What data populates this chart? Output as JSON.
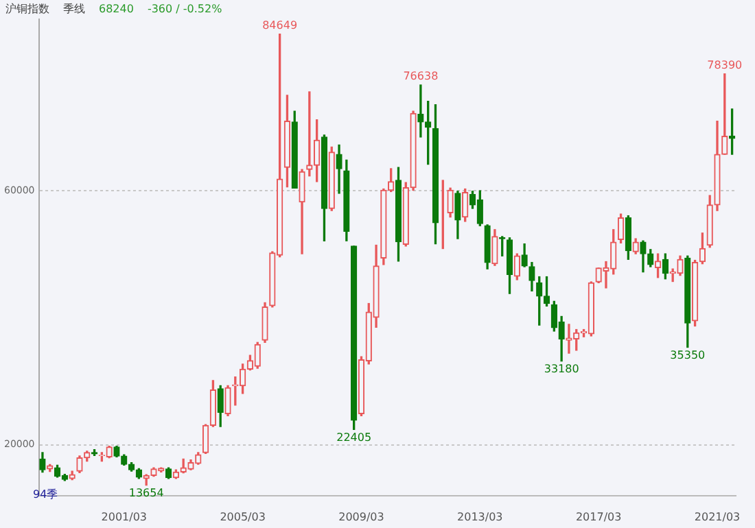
{
  "chart_data": {
    "type": "candlestick",
    "title": "沪铜指数",
    "subtitle": "季线",
    "annotations": [
      "68240",
      "-360 / -0.52%",
      "94季",
      {
        "text": "84649",
        "y": 84649
      },
      {
        "text": "13654",
        "y": 13654
      },
      {
        "text": "22405",
        "y": 22405
      },
      {
        "text": "76638",
        "y": 76638
      },
      {
        "text": "33180",
        "y": 33180
      },
      {
        "text": "35350",
        "y": 35350
      },
      {
        "text": "78390",
        "y": 78390
      }
    ],
    "categories": [
      null,
      null,
      null,
      null,
      null,
      null,
      null,
      null,
      null,
      null,
      null,
      "2001/03",
      null,
      null,
      null,
      null,
      null,
      null,
      null,
      null,
      null,
      null,
      null,
      null,
      null,
      null,
      null,
      "2005/03",
      null,
      null,
      null,
      null,
      null,
      null,
      null,
      null,
      null,
      null,
      null,
      null,
      null,
      null,
      null,
      "2009/03",
      null,
      null,
      null,
      null,
      null,
      null,
      null,
      null,
      null,
      null,
      null,
      null,
      null,
      null,
      null,
      "2013/03",
      null,
      null,
      null,
      null,
      null,
      null,
      null,
      null,
      null,
      null,
      null,
      null,
      null,
      null,
      null,
      "2017/03",
      null,
      null,
      null,
      null,
      null,
      null,
      null,
      null,
      null,
      null,
      null,
      null,
      null,
      null,
      null,
      "2021/03",
      null,
      null
    ],
    "ohlc": [
      [
        17760,
        18780,
        15700,
        16060
      ],
      [
        16200,
        16900,
        15800,
        16700
      ],
      [
        16400,
        16800,
        14900,
        15040
      ],
      [
        15170,
        15370,
        14360,
        14560
      ],
      [
        14700,
        15850,
        14500,
        15300
      ],
      [
        15850,
        18240,
        15600,
        17960
      ],
      [
        17960,
        19000,
        17420,
        18780
      ],
      [
        18780,
        19250,
        18300,
        18570
      ],
      [
        18300,
        18780,
        17420,
        18370
      ],
      [
        18100,
        19800,
        17960,
        19660
      ],
      [
        19660,
        19800,
        18100,
        18230
      ],
      [
        18230,
        18440,
        16800,
        16940
      ],
      [
        16940,
        17210,
        15850,
        16060
      ],
      [
        16060,
        16260,
        14700,
        14900
      ],
      [
        14700,
        15300,
        13654,
        15170
      ],
      [
        15170,
        16400,
        15040,
        16190
      ],
      [
        15900,
        16400,
        15720,
        16300
      ],
      [
        16190,
        16400,
        14700,
        14830
      ],
      [
        14830,
        16060,
        14700,
        15720
      ],
      [
        15720,
        17760,
        15580,
        16400
      ],
      [
        16190,
        17620,
        16060,
        17210
      ],
      [
        17070,
        18780,
        16940,
        18440
      ],
      [
        18780,
        23200,
        18640,
        23060
      ],
      [
        23060,
        30130,
        22860,
        28640
      ],
      [
        28840,
        29300,
        22860,
        25100
      ],
      [
        24900,
        29300,
        24560,
        28980
      ],
      [
        29300,
        30680,
        26240,
        29450
      ],
      [
        29300,
        32720,
        28080,
        31900
      ],
      [
        31900,
        34100,
        31770,
        33260
      ],
      [
        32380,
        36120,
        32040,
        35780
      ],
      [
        36460,
        42370,
        36120,
        41690
      ],
      [
        41900,
        50400,
        41690,
        50200
      ],
      [
        49870,
        84649,
        49590,
        61840
      ],
      [
        63680,
        75040,
        60610,
        70950
      ],
      [
        70820,
        72520,
        60410,
        60410
      ],
      [
        58230,
        63340,
        50070,
        63000
      ],
      [
        63340,
        75580,
        62320,
        64010
      ],
      [
        64010,
        71160,
        61430,
        67960
      ],
      [
        68440,
        68780,
        52110,
        57210
      ],
      [
        57210,
        66870,
        56870,
        66060
      ],
      [
        65720,
        67210,
        59590,
        63470
      ],
      [
        63130,
        64830,
        52110,
        53610
      ],
      [
        51290,
        51290,
        22405,
        23880
      ],
      [
        24900,
        33880,
        24560,
        33400
      ],
      [
        33200,
        42250,
        32720,
        40890
      ],
      [
        40070,
        51430,
        38500,
        48160
      ],
      [
        49390,
        60280,
        48370,
        60070
      ],
      [
        60070,
        63470,
        59860,
        61430
      ],
      [
        61630,
        63670,
        48910,
        51970
      ],
      [
        51570,
        61290,
        51290,
        60480
      ],
      [
        60480,
        72520,
        60070,
        72180
      ],
      [
        72040,
        76638,
        68440,
        70820
      ],
      [
        70820,
        74080,
        64150,
        70000
      ],
      [
        69800,
        73540,
        51630,
        54970
      ],
      [
        55380,
        61630,
        50890,
        55380
      ],
      [
        56530,
        60420,
        55850,
        60070
      ],
      [
        59590,
        59930,
        52450,
        55380
      ],
      [
        55850,
        60280,
        55170,
        59730
      ],
      [
        59390,
        59930,
        57210,
        57760
      ],
      [
        58570,
        60000,
        54490,
        54830
      ],
      [
        54490,
        54630,
        47690,
        48710
      ],
      [
        48500,
        53880,
        48230,
        52790
      ],
      [
        52590,
        52790,
        49730,
        52450
      ],
      [
        52250,
        52590,
        43810,
        46800
      ],
      [
        46530,
        50070,
        45990,
        49730
      ],
      [
        49870,
        51630,
        48030,
        48160
      ],
      [
        48030,
        48710,
        44220,
        45850
      ],
      [
        45510,
        46460,
        38840,
        43400
      ],
      [
        43400,
        46460,
        41840,
        42250
      ],
      [
        42040,
        42590,
        37900,
        38440
      ],
      [
        39320,
        40210,
        33180,
        36670
      ],
      [
        36460,
        38970,
        34420,
        36800
      ],
      [
        36670,
        38150,
        34870,
        37620
      ],
      [
        37620,
        38150,
        37000,
        37820
      ],
      [
        37480,
        45650,
        37140,
        45510
      ],
      [
        45650,
        47830,
        45510,
        47820
      ],
      [
        47350,
        48840,
        44700,
        47890
      ],
      [
        47690,
        53880,
        46870,
        51910
      ],
      [
        52310,
        56330,
        51770,
        55720
      ],
      [
        55720,
        56060,
        49190,
        50550
      ],
      [
        50410,
        52450,
        50070,
        51910
      ],
      [
        51910,
        52110,
        47210,
        50070
      ],
      [
        50070,
        50750,
        48030,
        48370
      ],
      [
        47890,
        50070,
        46330,
        48910
      ],
      [
        49180,
        50070,
        46120,
        47010
      ],
      [
        47010,
        47690,
        45710,
        47210
      ],
      [
        47010,
        49730,
        46670,
        49180
      ],
      [
        49390,
        49730,
        35350,
        39180
      ],
      [
        39520,
        49050,
        38700,
        48710
      ],
      [
        48840,
        53340,
        48500,
        50890
      ],
      [
        51430,
        59250,
        51090,
        57760
      ],
      [
        57760,
        70950,
        56870,
        65720
      ],
      [
        65720,
        78390,
        65720,
        68580
      ],
      [
        68600,
        72860,
        65720,
        68240
      ]
    ],
    "ylim": [
      12000,
      87000
    ],
    "yticks": [
      20000,
      60000
    ],
    "grid": "y"
  }
}
